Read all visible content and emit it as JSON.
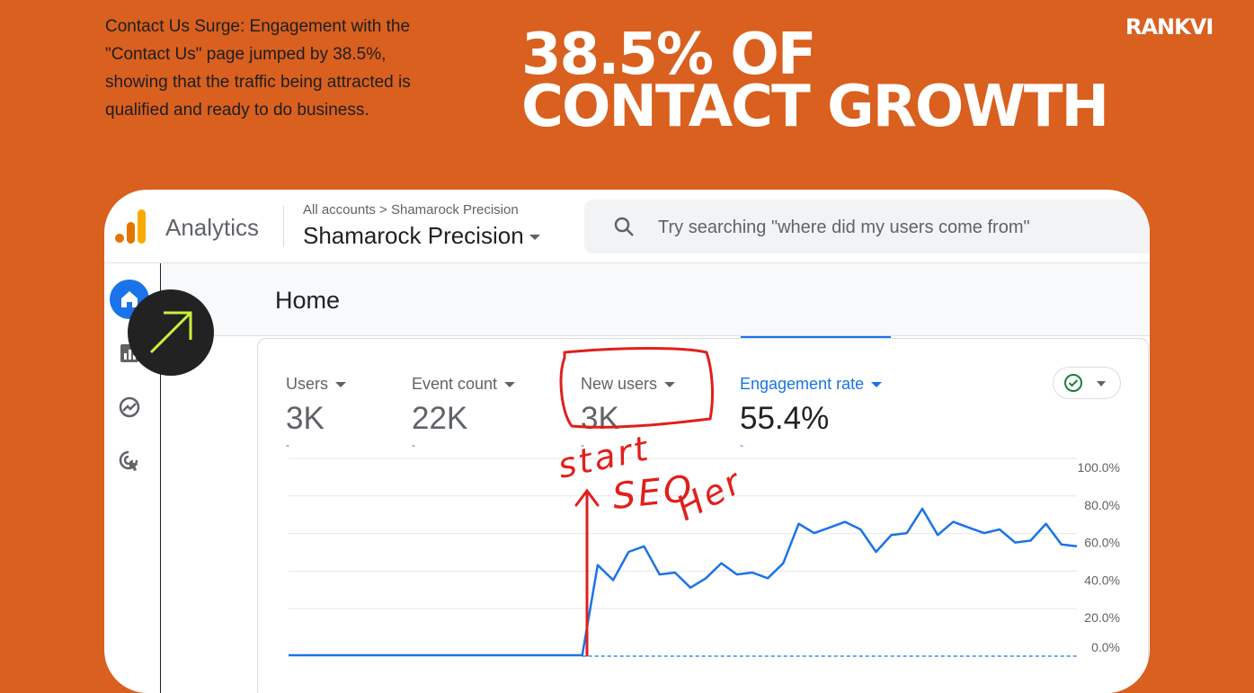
{
  "intro_text": "Contact Us Surge: Engagement with the \"Contact Us\" page jumped by 38.5%, showing that the traffic being attracted is qualified and ready to do business.",
  "headline": {
    "line1": "38.5% OF",
    "line2": "CONTACT GROWTH"
  },
  "brand": "RANKVI",
  "analytics": {
    "app_name": "Analytics",
    "breadcrumb": "All accounts > Shamarock Precision",
    "account_name": "Shamarock Precision",
    "search_placeholder": "Try searching \"where did my users come from\"",
    "nav_icons": [
      "home-icon",
      "reports-icon",
      "explore-icon",
      "advertising-icon"
    ],
    "page_title": "Home",
    "metrics": [
      {
        "label": "Users",
        "value": "3K",
        "change": "-"
      },
      {
        "label": "Event count",
        "value": "22K",
        "change": "-"
      },
      {
        "label": "New users",
        "value": "3K",
        "change": "-"
      },
      {
        "label": "Engagement rate",
        "value": "55.4%",
        "change": "-",
        "active": true
      }
    ],
    "status_icon": "check-circle-icon"
  },
  "annotation": {
    "handwritten": "start SEO Her",
    "color": "#e0201c"
  },
  "colors": {
    "background": "#d9601f",
    "accent": "#1a73e8",
    "annotation": "#e0201c"
  },
  "chart_data": {
    "type": "line",
    "ylabel": "",
    "y_ticks": [
      "100.0%",
      "80.0%",
      "60.0%",
      "40.0%",
      "20.0%",
      "0.0%"
    ],
    "ylim": [
      0,
      100
    ],
    "series": [
      {
        "values": [
          0,
          0,
          0,
          0,
          0,
          0,
          0,
          0,
          0,
          0,
          0,
          0,
          0,
          0,
          0,
          0,
          0,
          0,
          0,
          0,
          48,
          40,
          55,
          58,
          43,
          44,
          36,
          41,
          49,
          43,
          44,
          41,
          49,
          70,
          65,
          68,
          71,
          67,
          55,
          64,
          65,
          78,
          64,
          71,
          68,
          65,
          67,
          60,
          61,
          70,
          59,
          58
        ]
      }
    ]
  }
}
